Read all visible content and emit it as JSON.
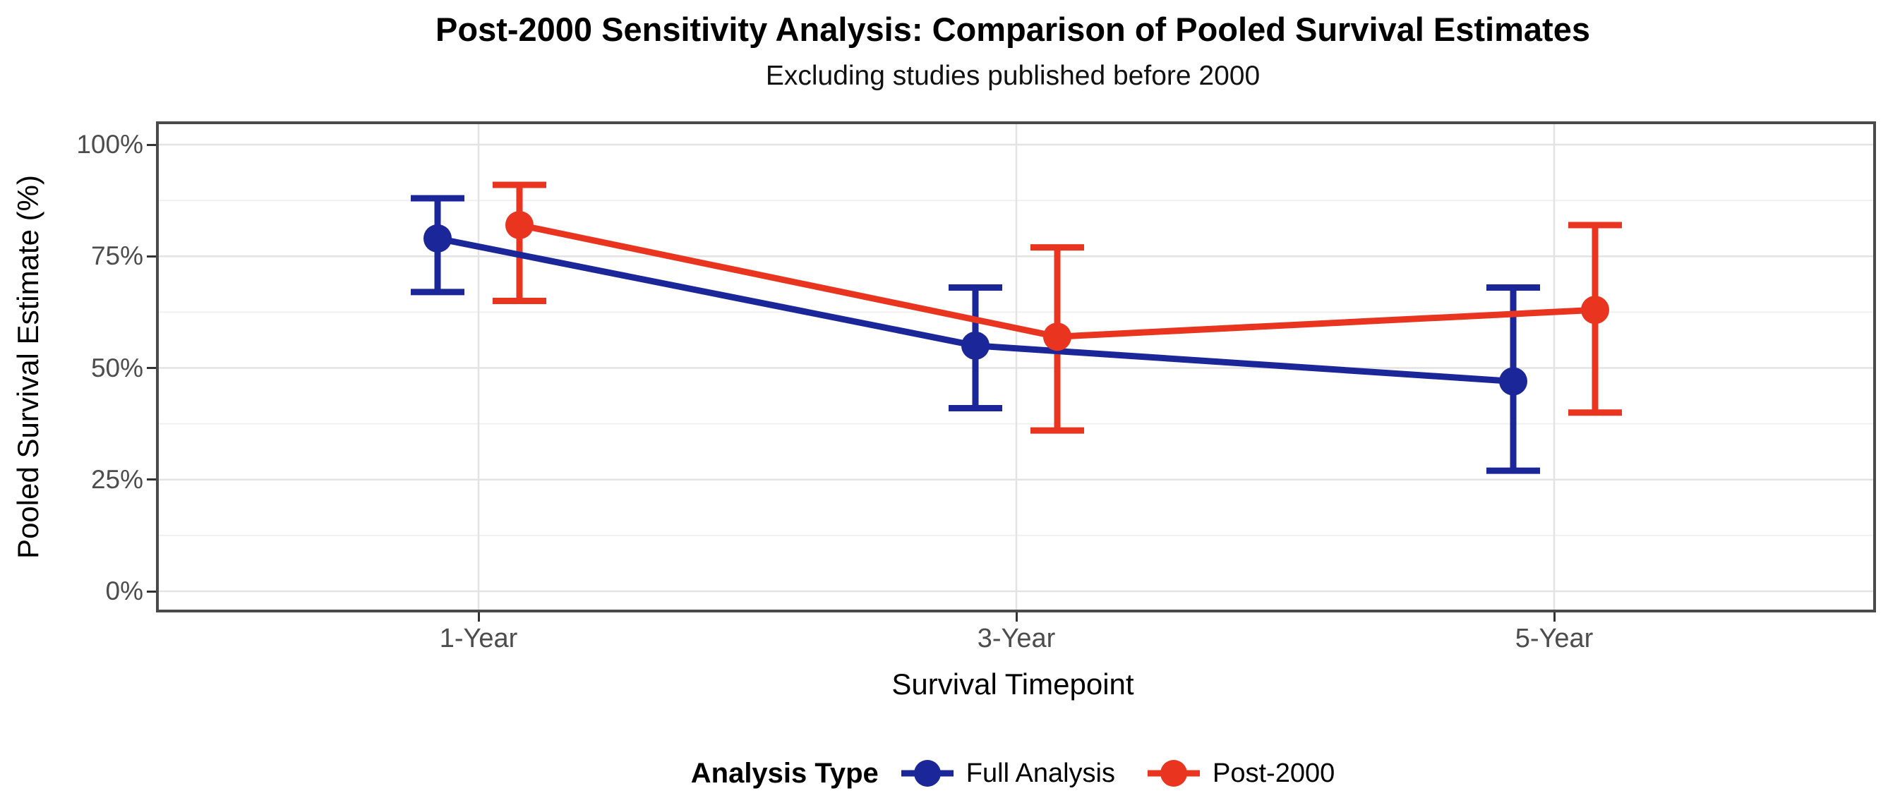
{
  "figure": {
    "background": "#ffffff"
  },
  "chart_data": {
    "type": "line",
    "title": "Post-2000 Sensitivity Analysis: Comparison of Pooled Survival Estimates",
    "subtitle": "Excluding studies published before 2000",
    "xlabel": "Survival Timepoint",
    "ylabel": "Pooled Survival Estimate (%)",
    "categories": [
      "1-Year",
      "3-Year",
      "5-Year"
    ],
    "ylim": [
      0,
      100
    ],
    "y_ticks": [
      "0%",
      "25%",
      "50%",
      "75%",
      "100%"
    ],
    "y_tick_values": [
      0,
      25,
      50,
      75,
      100
    ],
    "y_minor_tick_values": [
      12.5,
      37.5,
      62.5,
      87.5
    ],
    "grid": true,
    "error_bars": true,
    "legend_title": "Analysis Type",
    "legend_position": "bottom",
    "series": [
      {
        "name": "Full Analysis",
        "color": "#1b2799",
        "values": [
          79,
          55,
          47
        ],
        "ci_low": [
          67,
          41,
          27
        ],
        "ci_high": [
          88,
          68,
          68
        ]
      },
      {
        "name": "Post-2000",
        "color": "#e93420",
        "values": [
          82,
          57,
          63
        ],
        "ci_low": [
          65,
          36,
          40
        ],
        "ci_high": [
          91,
          77,
          82
        ]
      }
    ]
  }
}
